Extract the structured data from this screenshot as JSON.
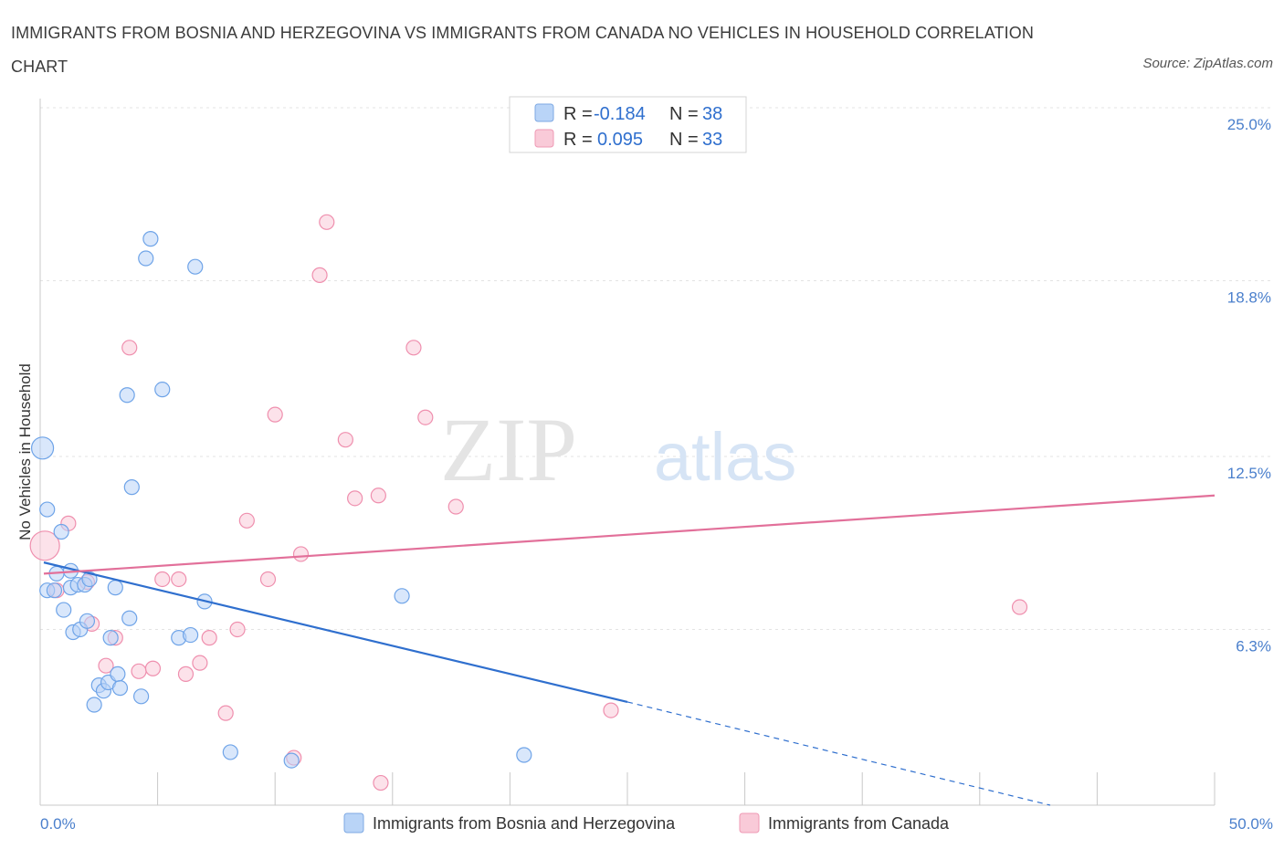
{
  "chart_data": {
    "type": "scatter",
    "title": "IMMIGRANTS FROM BOSNIA AND HERZEGOVINA VS IMMIGRANTS FROM CANADA NO VEHICLES IN HOUSEHOLD CORRELATION CHART",
    "source": "Source: ZipAtlas.com",
    "ylabel": "No Vehicles in Household",
    "xlim": [
      0,
      50
    ],
    "ylim": [
      0,
      25
    ],
    "x_tick_labels": [
      "0.0%",
      "50.0%"
    ],
    "y_ticks": [
      6.3,
      12.5,
      18.8,
      25.0
    ],
    "y_tick_labels": [
      "6.3%",
      "12.5%",
      "18.8%",
      "25.0%"
    ],
    "grid": true,
    "legend_position": "top-center",
    "colors": {
      "bosnia": "#6fa4e8",
      "canada": "#ef8fae",
      "bosnia_line": "#2f6fce",
      "canada_line": "#e2709a"
    },
    "stats": [
      {
        "r_label": "R =",
        "r_value": "-0.184",
        "n_label": "N =",
        "n_value": "38"
      },
      {
        "r_label": "R =",
        "r_value": "0.095",
        "n_label": "N =",
        "n_value": "33"
      }
    ],
    "series": [
      {
        "name": "Immigrants from Bosnia and Herzegovina",
        "points": [
          [
            0.1,
            12.8
          ],
          [
            0.3,
            10.6
          ],
          [
            0.3,
            7.7
          ],
          [
            0.6,
            7.7
          ],
          [
            0.7,
            8.3
          ],
          [
            0.9,
            9.8
          ],
          [
            1.0,
            7.0
          ],
          [
            1.3,
            8.4
          ],
          [
            1.3,
            7.8
          ],
          [
            1.4,
            6.2
          ],
          [
            1.6,
            7.9
          ],
          [
            1.7,
            6.3
          ],
          [
            1.9,
            7.9
          ],
          [
            2.0,
            6.6
          ],
          [
            2.1,
            8.1
          ],
          [
            2.3,
            3.6
          ],
          [
            2.5,
            4.3
          ],
          [
            2.7,
            4.1
          ],
          [
            2.9,
            4.4
          ],
          [
            3.0,
            6.0
          ],
          [
            3.2,
            7.8
          ],
          [
            3.3,
            4.7
          ],
          [
            3.4,
            4.2
          ],
          [
            3.7,
            14.7
          ],
          [
            3.8,
            6.7
          ],
          [
            3.9,
            11.4
          ],
          [
            4.3,
            3.9
          ],
          [
            4.5,
            19.6
          ],
          [
            4.7,
            20.3
          ],
          [
            5.2,
            14.9
          ],
          [
            5.9,
            6.0
          ],
          [
            6.4,
            6.1
          ],
          [
            6.6,
            19.3
          ],
          [
            7.0,
            7.3
          ],
          [
            8.1,
            1.9
          ],
          [
            10.7,
            1.6
          ],
          [
            15.4,
            7.5
          ],
          [
            20.6,
            1.8
          ]
        ],
        "trendline": {
          "x": [
            0,
            25
          ],
          "y": [
            8.7,
            3.7
          ]
        },
        "trendline_dashed": {
          "x": [
            25,
            43
          ],
          "y": [
            3.7,
            0.0
          ]
        }
      },
      {
        "name": "Immigrants from Canada",
        "points": [
          [
            0.2,
            9.3
          ],
          [
            0.7,
            7.7
          ],
          [
            1.2,
            10.1
          ],
          [
            2.0,
            8.0
          ],
          [
            2.2,
            6.5
          ],
          [
            2.8,
            5.0
          ],
          [
            3.2,
            6.0
          ],
          [
            3.8,
            16.4
          ],
          [
            4.2,
            4.8
          ],
          [
            4.8,
            4.9
          ],
          [
            5.2,
            8.1
          ],
          [
            5.9,
            8.1
          ],
          [
            6.2,
            4.7
          ],
          [
            6.8,
            5.1
          ],
          [
            7.2,
            6.0
          ],
          [
            7.9,
            3.3
          ],
          [
            8.4,
            6.3
          ],
          [
            8.8,
            10.2
          ],
          [
            9.7,
            8.1
          ],
          [
            10.0,
            14.0
          ],
          [
            10.8,
            1.7
          ],
          [
            11.1,
            9.0
          ],
          [
            11.9,
            19.0
          ],
          [
            12.2,
            20.9
          ],
          [
            13.0,
            13.1
          ],
          [
            13.4,
            11.0
          ],
          [
            14.4,
            11.1
          ],
          [
            14.5,
            0.8
          ],
          [
            15.9,
            16.4
          ],
          [
            16.4,
            13.9
          ],
          [
            17.7,
            10.7
          ],
          [
            24.3,
            3.4
          ],
          [
            41.7,
            7.1
          ]
        ],
        "trendline": {
          "x": [
            0,
            50
          ],
          "y": [
            8.3,
            11.1
          ]
        }
      }
    ],
    "watermark": {
      "part1": "ZIP",
      "part2": "atlas"
    }
  }
}
